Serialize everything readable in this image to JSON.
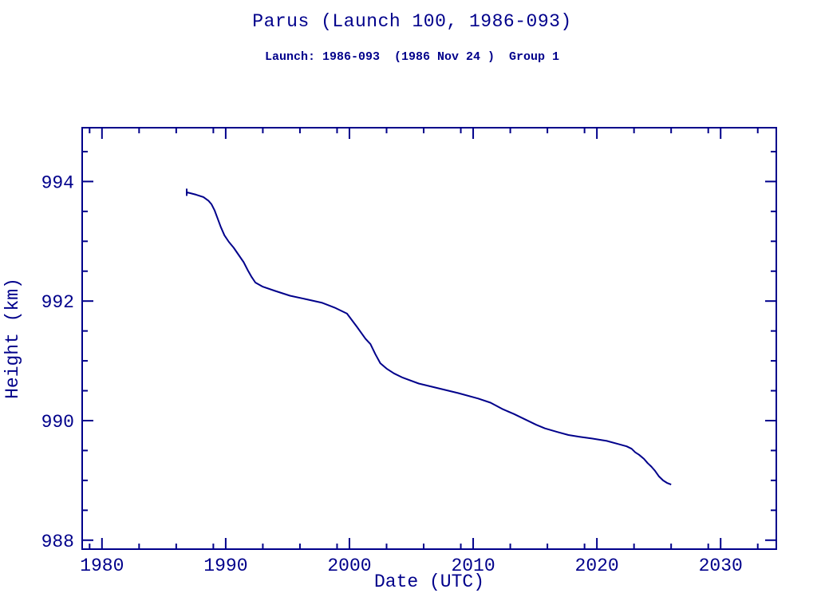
{
  "header": {
    "title": "Parus (Launch 100, 1986-093)",
    "subtitle": "Launch: 1986-093  (1986 Nov 24 )  Group 1"
  },
  "colors": {
    "ink": "#00008b",
    "line": "#00008b",
    "background": "#ffffff"
  },
  "chart_data": {
    "type": "line",
    "title": "Parus (Launch 100, 1986-093)",
    "subtitle": "Launch: 1986-093  (1986 Nov 24 )  Group 1",
    "xlabel": "Date (UTC)",
    "ylabel": "Height (km)",
    "xlim": [
      1978.4,
      2034.5
    ],
    "ylim": [
      987.85,
      994.9
    ],
    "x_major_ticks": [
      1980,
      1990,
      2000,
      2010,
      2020,
      2030
    ],
    "x_minor_ticks": [
      1979,
      1983,
      1986,
      1989,
      1993,
      1996,
      1999,
      2003,
      2006,
      2009,
      2013,
      2016,
      2019,
      2023,
      2026,
      2029,
      2033
    ],
    "y_major_ticks": [
      988,
      990,
      992,
      994
    ],
    "y_minor_ticks": [
      988.5,
      989,
      989.5,
      990.5,
      991,
      991.5,
      992.5,
      993,
      993.5,
      994.5
    ],
    "grid": false,
    "legend": null,
    "series": [
      {
        "name": "height",
        "points": [
          [
            1986.85,
            993.88
          ],
          [
            1986.85,
            993.77
          ],
          [
            1986.85,
            993.82
          ],
          [
            1987.6,
            993.78
          ],
          [
            1988.2,
            993.74
          ],
          [
            1988.6,
            993.68
          ],
          [
            1988.85,
            993.62
          ],
          [
            1989.1,
            993.52
          ],
          [
            1989.35,
            993.38
          ],
          [
            1989.6,
            993.24
          ],
          [
            1989.9,
            993.1
          ],
          [
            1990.25,
            992.99
          ],
          [
            1990.65,
            992.89
          ],
          [
            1991.05,
            992.77
          ],
          [
            1991.45,
            992.65
          ],
          [
            1991.8,
            992.51
          ],
          [
            1992.1,
            992.4
          ],
          [
            1992.4,
            992.31
          ],
          [
            1993.0,
            992.24
          ],
          [
            1994.0,
            992.17
          ],
          [
            1995.2,
            992.09
          ],
          [
            1996.5,
            992.03
          ],
          [
            1997.8,
            991.97
          ],
          [
            1998.8,
            991.89
          ],
          [
            1999.8,
            991.79
          ],
          [
            2000.6,
            991.57
          ],
          [
            2001.3,
            991.37
          ],
          [
            2001.7,
            991.28
          ],
          [
            2002.1,
            991.11
          ],
          [
            2002.5,
            990.96
          ],
          [
            2003.0,
            990.87
          ],
          [
            2003.6,
            990.79
          ],
          [
            2004.3,
            990.72
          ],
          [
            2005.6,
            990.62
          ],
          [
            2007.2,
            990.54
          ],
          [
            2008.8,
            990.46
          ],
          [
            2010.4,
            990.37
          ],
          [
            2011.4,
            990.3
          ],
          [
            2012.4,
            990.19
          ],
          [
            2013.3,
            990.11
          ],
          [
            2014.3,
            990.01
          ],
          [
            2015.1,
            989.93
          ],
          [
            2015.8,
            989.87
          ],
          [
            2016.8,
            989.81
          ],
          [
            2017.7,
            989.76
          ],
          [
            2018.6,
            989.73
          ],
          [
            2019.6,
            989.7
          ],
          [
            2020.8,
            989.66
          ],
          [
            2021.7,
            989.61
          ],
          [
            2022.4,
            989.57
          ],
          [
            2022.8,
            989.53
          ],
          [
            2023.1,
            989.47
          ],
          [
            2023.4,
            989.43
          ],
          [
            2023.8,
            989.36
          ],
          [
            2024.1,
            989.29
          ],
          [
            2024.4,
            989.23
          ],
          [
            2024.7,
            989.16
          ],
          [
            2025.0,
            989.07
          ],
          [
            2025.35,
            989.0
          ],
          [
            2025.65,
            988.96
          ],
          [
            2026.0,
            988.93
          ]
        ]
      }
    ]
  }
}
